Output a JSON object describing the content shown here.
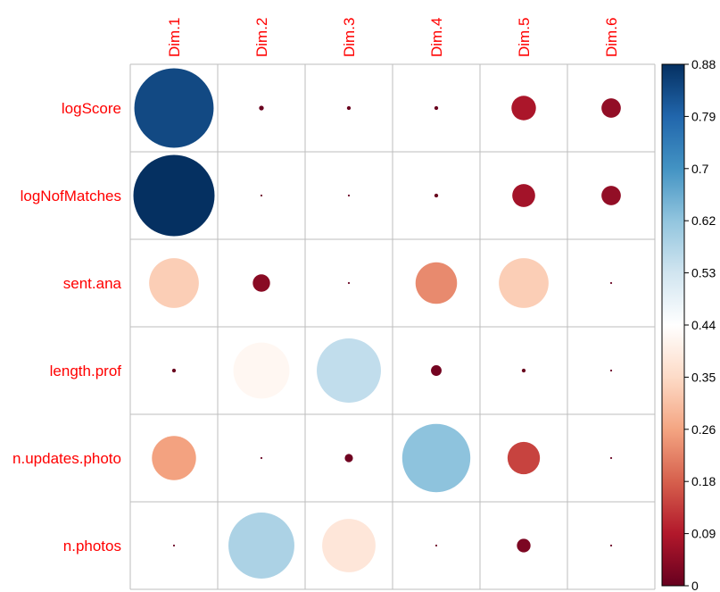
{
  "chart_data": {
    "type": "heatmap",
    "title": "",
    "columns": [
      "Dim.1",
      "Dim.2",
      "Dim.3",
      "Dim.4",
      "Dim.5",
      "Dim.6"
    ],
    "rows": [
      "logScore",
      "logNofMatches",
      "sent.ana",
      "length.prof",
      "n.updates.photo",
      "n.photos"
    ],
    "values": [
      [
        0.84,
        0.003,
        0.002,
        0.002,
        0.08,
        0.05
      ],
      [
        0.88,
        0.0005,
        0.0005,
        0.002,
        0.07,
        0.05
      ],
      [
        0.33,
        0.04,
        0.0005,
        0.23,
        0.33,
        0.0005
      ],
      [
        0.002,
        0.42,
        0.55,
        0.015,
        0.002,
        0.0005
      ],
      [
        0.26,
        0.0005,
        0.009,
        0.62,
        0.14,
        0.0005
      ],
      [
        0.0005,
        0.58,
        0.38,
        0.0005,
        0.025,
        0.0005
      ]
    ],
    "color_scale": {
      "min": 0,
      "max": 0.88,
      "ticks": [
        "0",
        "0.09",
        "0.18",
        "0.26",
        "0.35",
        "0.44",
        "0.53",
        "0.62",
        "0.7",
        "0.79",
        "0.88"
      ],
      "colors": [
        "#67001F",
        "#B2182B",
        "#D6604D",
        "#F4A582",
        "#FDDBC7",
        "#FFFFFF",
        "#D1E5F0",
        "#92C5DE",
        "#4393C3",
        "#2166AC",
        "#053061"
      ]
    },
    "label_color": "#FF0000",
    "grid_color": "#BEBEBE",
    "legend_position": "right"
  }
}
